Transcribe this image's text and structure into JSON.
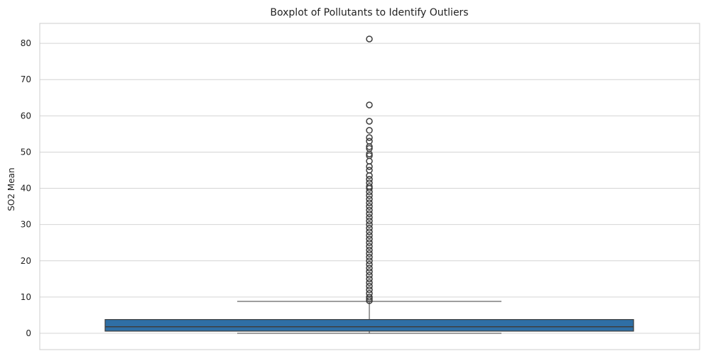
{
  "chart_data": {
    "type": "box",
    "title": "Boxplot of Pollutants to Identify Outliers",
    "xlabel": "",
    "ylabel": "SO2 Mean",
    "ylim": [
      -4.5,
      85.5
    ],
    "yticks": [
      0,
      10,
      20,
      30,
      40,
      50,
      60,
      70,
      80
    ],
    "grid": true,
    "colors": {
      "box": "#2f6fa5",
      "edge": "#3d3d3d",
      "grid": "#d4d4d4",
      "background": "#ffffff"
    },
    "box": {
      "min": 0.0,
      "q1": 0.6,
      "median": 1.8,
      "q3": 3.8,
      "whisker_high": 8.8
    },
    "outliers": [
      9,
      9.5,
      10,
      11,
      12,
      13,
      14,
      15,
      16,
      17,
      18,
      19,
      20,
      21,
      22,
      23,
      24,
      25,
      26,
      27,
      28,
      29,
      30,
      31,
      32,
      33,
      34,
      35,
      36,
      37,
      38,
      39,
      40,
      40.5,
      41.5,
      42.5,
      43.5,
      45,
      46,
      47.5,
      49,
      49.5,
      51,
      51.5,
      53,
      54,
      56,
      58.5,
      63,
      81.2
    ]
  }
}
